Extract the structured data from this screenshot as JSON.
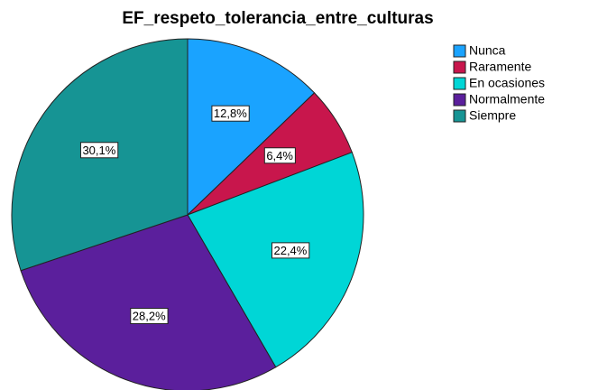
{
  "chart_data": {
    "type": "pie",
    "title": "EF_respeto_tolerancia_entre_culturas",
    "categories": [
      "Nunca",
      "Raramente",
      "En ocasiones",
      "Normalmente",
      "Siempre"
    ],
    "values": [
      12.8,
      6.4,
      22.4,
      28.2,
      30.1
    ],
    "value_labels": [
      "12,8%",
      "6,4%",
      "22,4%",
      "28,2%",
      "30,1%"
    ],
    "colors": [
      "#1aa3ff",
      "#c8164c",
      "#00d6d6",
      "#5b1f9c",
      "#169494"
    ]
  }
}
